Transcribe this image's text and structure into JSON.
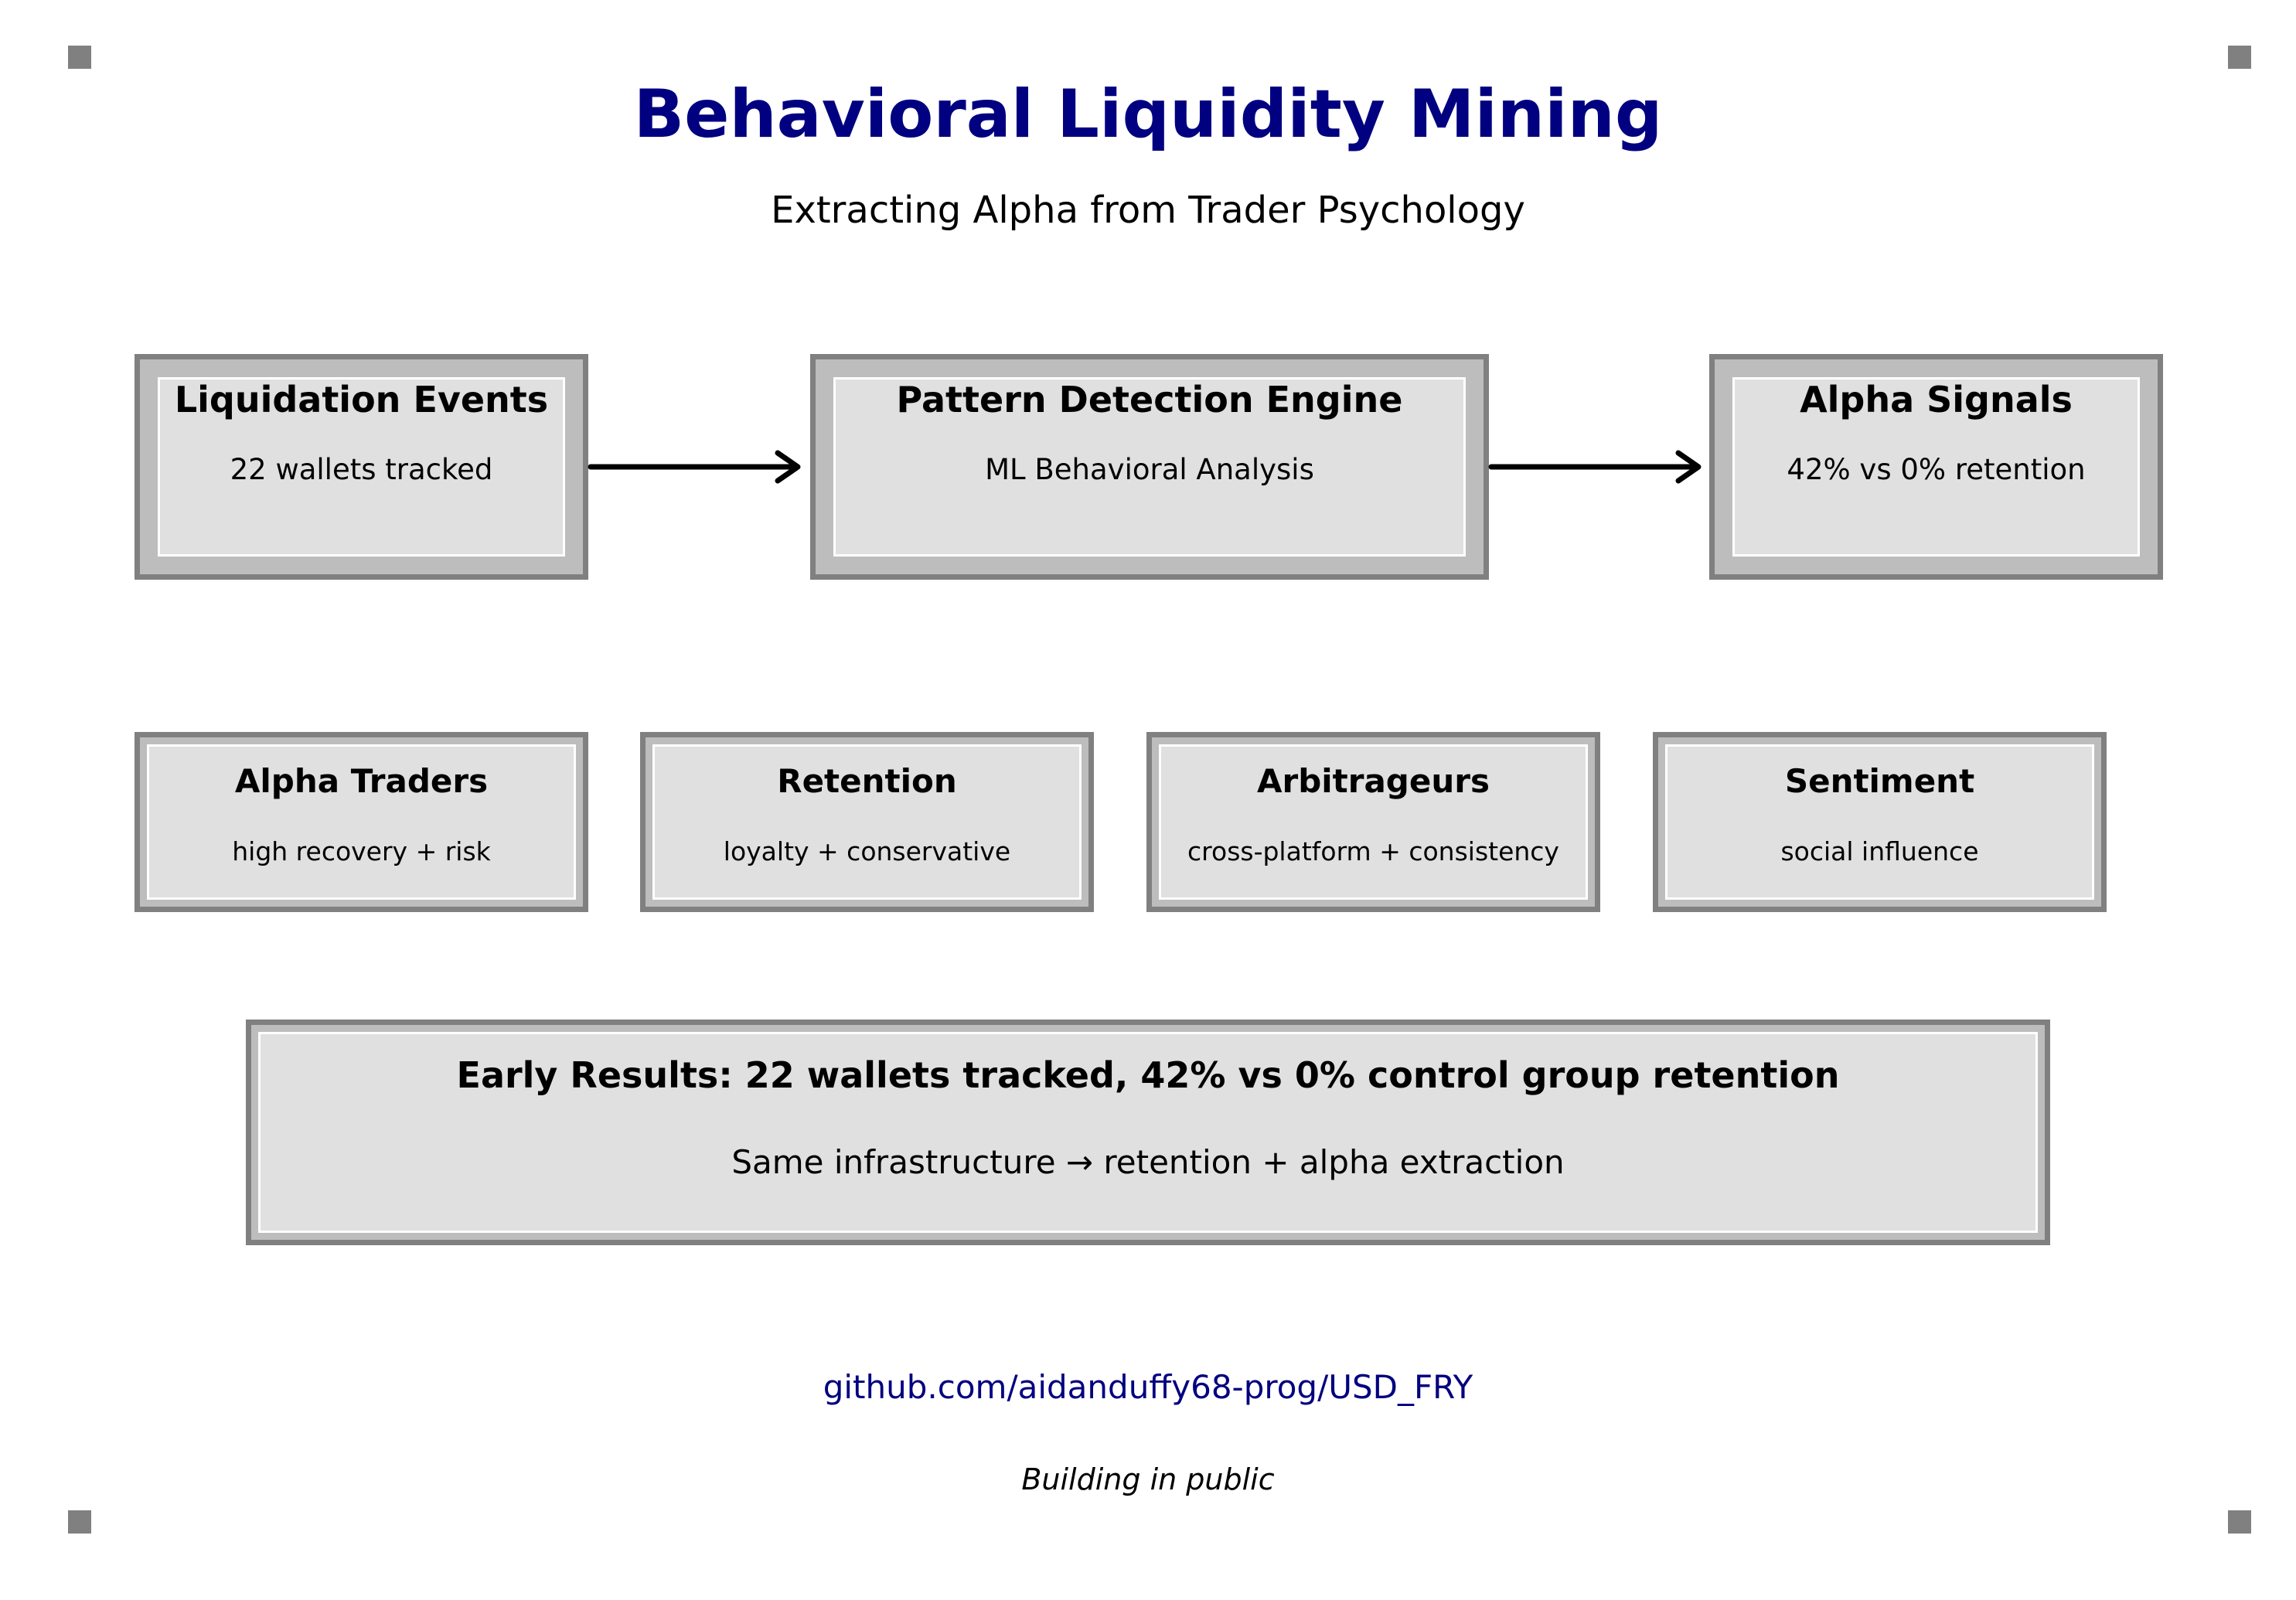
{
  "title": "Behavioral Liquidity Mining",
  "subtitle": "Extracting Alpha from Trader Psychology",
  "colors": {
    "title": "#000080",
    "box_border": "#808080",
    "box_frame": "#bdbdbd",
    "box_fill": "#e0e0e0",
    "link": "#000080"
  },
  "pipeline": [
    {
      "title": "Liquidation Events",
      "detail": "22 wallets tracked"
    },
    {
      "title": "Pattern Detection Engine",
      "detail": "ML Behavioral Analysis"
    },
    {
      "title": "Alpha Signals",
      "detail": "42% vs 0% retention"
    }
  ],
  "categories": [
    {
      "title": "Alpha Traders",
      "detail": "high recovery + risk"
    },
    {
      "title": "Retention",
      "detail": "loyalty + conservative"
    },
    {
      "title": "Arbitrageurs",
      "detail": "cross-platform + consistency"
    },
    {
      "title": "Sentiment",
      "detail": "social influence"
    }
  ],
  "results": {
    "headline": "Early Results: 22 wallets tracked, 42% vs 0% control group retention",
    "detail": "Same infrastructure → retention + alpha extraction"
  },
  "footer": {
    "link": "github.com/aidanduffy68-prog/USD_FRY",
    "tagline": "Building in public"
  }
}
